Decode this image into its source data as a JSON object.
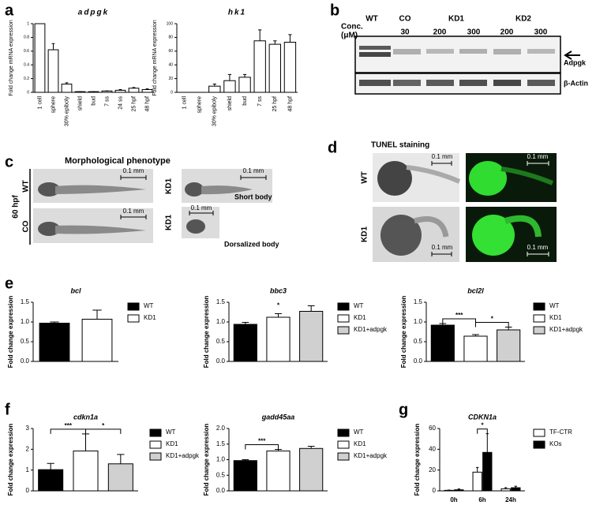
{
  "panel_labels": [
    "a",
    "b",
    "c",
    "d",
    "e",
    "f",
    "g"
  ],
  "blot": {
    "lanes": [
      "WT",
      "CO",
      "KD1",
      "KD2"
    ],
    "conc_label": [
      "Conc.",
      "(μM)"
    ],
    "concentrations": [
      "30",
      "200",
      "300",
      "200",
      "300"
    ],
    "bands": [
      "Adpgk",
      "β-Actin"
    ]
  },
  "morphology": {
    "title": "Morphological phenotype",
    "stage": "60 hpf",
    "rows": [
      "WT",
      "CO",
      "KD1",
      "KD1"
    ],
    "scale": [
      "0.1 mm",
      "0.1 mm",
      "0.1 mm",
      "0.1 mm"
    ],
    "notes": [
      "Short body",
      "Dorsalized body"
    ]
  },
  "tunel": {
    "title": "TUNEL staining",
    "rows": [
      "WT",
      "KD1"
    ],
    "scale": [
      "0.1 mm",
      "0.1 mm",
      "0.1 mm",
      "0.1 mm"
    ]
  },
  "chart_data": [
    {
      "type": "bar",
      "title": "adpgk",
      "y_label": "Fold change mRNA expression",
      "color": "#ffffff",
      "categories": [
        "1 cell",
        "sphere",
        "30% epiboly",
        "shield",
        "bud",
        "7 ss",
        "24 ss",
        "25 hpf",
        "48 hpf"
      ],
      "values": [
        1.0,
        0.62,
        0.12,
        0.01,
        0.01,
        0.02,
        0.03,
        0.06,
        0.04
      ],
      "errors": [
        0,
        0.09,
        0.02,
        0,
        0,
        0,
        0.01,
        0.01,
        0.01
      ],
      "ylim": [
        0,
        1
      ],
      "yticks": [
        0,
        0.2,
        0.4,
        0.6,
        0.8,
        1
      ]
    },
    {
      "type": "bar",
      "title": "hk1",
      "y_label": "Fold change mRNA expression",
      "color": "#ffffff",
      "categories": [
        "1 cell",
        "sphere",
        "30% epiboly",
        "shield",
        "bud",
        "7 ss",
        "25 hpf",
        "48 hpf"
      ],
      "values": [
        0,
        0,
        9,
        17,
        22,
        75,
        70,
        73
      ],
      "errors": [
        0,
        0,
        3,
        9,
        4,
        16,
        5,
        11
      ],
      "ylim": [
        0,
        100
      ],
      "yticks": [
        0,
        20,
        40,
        60,
        80,
        100
      ]
    },
    {
      "type": "bar",
      "title": "bcl",
      "y_label": "Fold change expression",
      "legend": "right",
      "series": [
        {
          "name": "WT",
          "color": "#000000",
          "values": [
            0.97
          ],
          "errors": [
            0.03
          ]
        },
        {
          "name": "KD1",
          "color": "#ffffff",
          "values": [
            1.07
          ],
          "errors": [
            0.23
          ]
        }
      ],
      "ylim": [
        0,
        1.5
      ],
      "yticks": [
        {
          "value": 0,
          "label": "0.0"
        },
        0.5,
        {
          "value": 1,
          "label": "1.0"
        },
        1.5
      ]
    },
    {
      "type": "bar",
      "title": "bbc3",
      "y_label": "Fold change expression",
      "legend": "right",
      "annotations": [
        "*"
      ],
      "series": [
        {
          "name": "WT",
          "color": "#000000",
          "values": [
            0.94
          ],
          "errors": [
            0.05
          ]
        },
        {
          "name": "KD1",
          "color": "#ffffff",
          "values": [
            1.12
          ],
          "errors": [
            0.09
          ]
        },
        {
          "name": "KD1+adpgk",
          "color": "#d0d0d0",
          "values": [
            1.27
          ],
          "errors": [
            0.14
          ]
        }
      ],
      "ylim": [
        0,
        1.5
      ],
      "yticks": [
        {
          "value": 0,
          "label": "0.0"
        },
        0.5,
        {
          "value": 1,
          "label": "1.0"
        },
        1.5
      ]
    },
    {
      "type": "bar",
      "title": "bcl2l",
      "y_label": "Fold change expression",
      "legend": "right",
      "annotations": [
        "***",
        "*"
      ],
      "series": [
        {
          "name": "WT",
          "color": "#000000",
          "values": [
            0.92
          ],
          "errors": [
            0.04
          ]
        },
        {
          "name": "KD1",
          "color": "#ffffff",
          "values": [
            0.64
          ],
          "errors": [
            0.04
          ]
        },
        {
          "name": "KD1+adpgk",
          "color": "#d0d0d0",
          "values": [
            0.8
          ],
          "errors": [
            0.07
          ]
        }
      ],
      "ylim": [
        0,
        1.5
      ],
      "yticks": [
        {
          "value": 0,
          "label": "0.0"
        },
        0.5,
        {
          "value": 1,
          "label": "1.0"
        },
        1.5
      ]
    },
    {
      "type": "bar",
      "title": "cdkn1a",
      "y_label": "Fold change expression",
      "legend": "right",
      "annotations": [
        "***",
        "*"
      ],
      "series": [
        {
          "name": "WT",
          "color": "#000000",
          "values": [
            1.02
          ],
          "errors": [
            0.3
          ]
        },
        {
          "name": "KD1",
          "color": "#ffffff",
          "values": [
            1.92
          ],
          "errors": [
            0.82
          ]
        },
        {
          "name": "KD1+adpgk",
          "color": "#d0d0d0",
          "values": [
            1.3
          ],
          "errors": [
            0.45
          ]
        }
      ],
      "ylim": [
        0,
        3
      ],
      "yticks": [
        0,
        1,
        2,
        3
      ]
    },
    {
      "type": "bar",
      "title": "gadd45aa",
      "y_label": "Fold change expression",
      "legend": "right",
      "annotations": [
        "***"
      ],
      "series": [
        {
          "name": "WT",
          "color": "#000000",
          "values": [
            0.97
          ],
          "errors": [
            0.03
          ]
        },
        {
          "name": "KD1",
          "color": "#ffffff",
          "values": [
            1.28
          ],
          "errors": [
            0.05
          ]
        },
        {
          "name": "KD1+adpgk",
          "color": "#d0d0d0",
          "values": [
            1.36
          ],
          "errors": [
            0.07
          ]
        }
      ],
      "ylim": [
        0,
        2
      ],
      "yticks": [
        {
          "value": 0,
          "label": "0.0"
        },
        0.5,
        {
          "value": 1,
          "label": "1.0"
        },
        1.5,
        {
          "value": 2,
          "label": "2.0"
        }
      ]
    },
    {
      "type": "bar",
      "title": "CDKN1a",
      "y_label": "Fold change expression",
      "legend": "right",
      "annotations": [
        "*"
      ],
      "categories": [
        "0h",
        "6h",
        "24h"
      ],
      "series": [
        {
          "name": "TF-CTR",
          "color": "#ffffff",
          "values": [
            0.5,
            18,
            2
          ],
          "errors": [
            0.3,
            4.5,
            1
          ]
        },
        {
          "name": "KOs",
          "color": "#000000",
          "values": [
            1,
            37,
            3
          ],
          "errors": [
            0.8,
            18,
            1.5
          ]
        }
      ],
      "ylim": [
        0,
        60
      ],
      "yticks": [
        0,
        20,
        40,
        60
      ]
    }
  ]
}
